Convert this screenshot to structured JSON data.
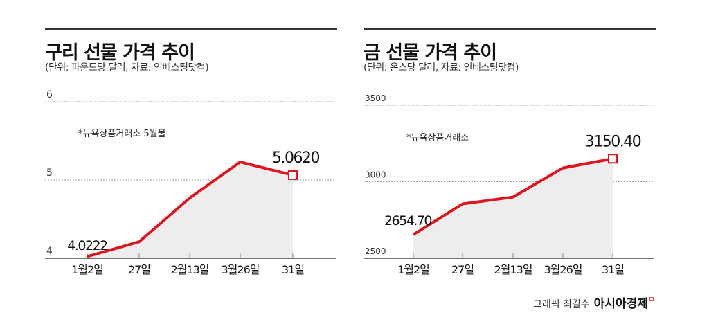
{
  "chart_data": [
    {
      "type": "area",
      "title": "구리 선물 가격 추이",
      "subtitle": "(단위: 파운드당 달러, 자료: 인베스팅닷컴)",
      "note": "*뉴욕상품거래소 5월물",
      "categories": [
        "1월2일",
        "27일",
        "2월13일",
        "3월26일",
        "31일"
      ],
      "values": [
        4.0222,
        4.21,
        4.77,
        5.23,
        5.062
      ],
      "labels": {
        "first": "4.0222",
        "last": "5.0620"
      },
      "yticks": [
        "4",
        "5",
        "6"
      ],
      "ylim": [
        4,
        6
      ],
      "grid": true,
      "color": "#e0141e"
    },
    {
      "type": "area",
      "title": "금 선물 가격 추이",
      "subtitle": "(단위: 온스당 달러, 자료: 인베스팅닷컴)",
      "note": "*뉴욕상품거래소",
      "categories": [
        "1월2일",
        "27일",
        "2월13일",
        "3월26일",
        "31일"
      ],
      "values": [
        2654.7,
        2855,
        2900,
        3090,
        3150.4
      ],
      "labels": {
        "first": "2654.70",
        "last": "3150.40"
      },
      "yticks": [
        "2500",
        "3000",
        "3500"
      ],
      "ylim": [
        2500,
        3500
      ],
      "grid": true,
      "color": "#e0141e"
    }
  ],
  "credit": {
    "text": "그래픽 최길수",
    "brand": "아시아경제",
    "mark": "ㅁ"
  }
}
